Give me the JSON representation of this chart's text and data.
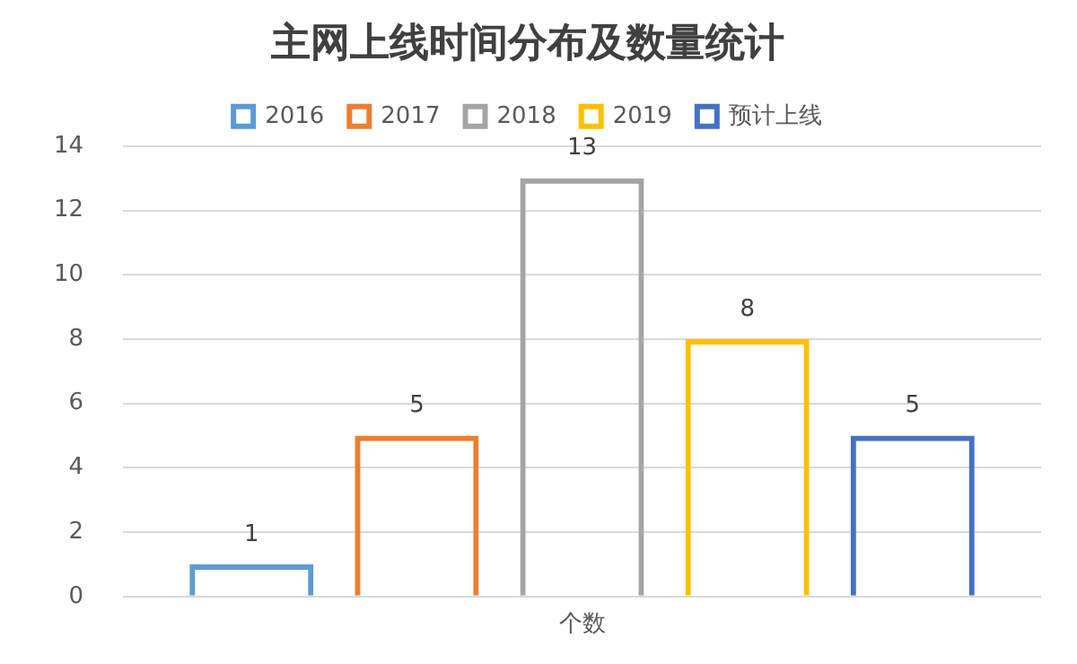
{
  "chart_data": {
    "type": "bar",
    "title": "主网上线时间分布及数量统计",
    "categories": [
      "个数"
    ],
    "series": [
      {
        "name": "2016",
        "color": "#5b9bd5",
        "values": [
          1
        ]
      },
      {
        "name": "2017",
        "color": "#ed7d31",
        "values": [
          5
        ]
      },
      {
        "name": "2018",
        "color": "#a5a5a5",
        "values": [
          13
        ]
      },
      {
        "name": "2019",
        "color": "#ffc000",
        "values": [
          8
        ]
      },
      {
        "name": "预计上线",
        "color": "#4472c4",
        "values": [
          5
        ]
      }
    ],
    "ylim": [
      0,
      14
    ],
    "yticks": [
      0,
      2,
      4,
      6,
      8,
      10,
      12,
      14
    ],
    "grid": "y",
    "legend": "top",
    "data_labels": true
  }
}
